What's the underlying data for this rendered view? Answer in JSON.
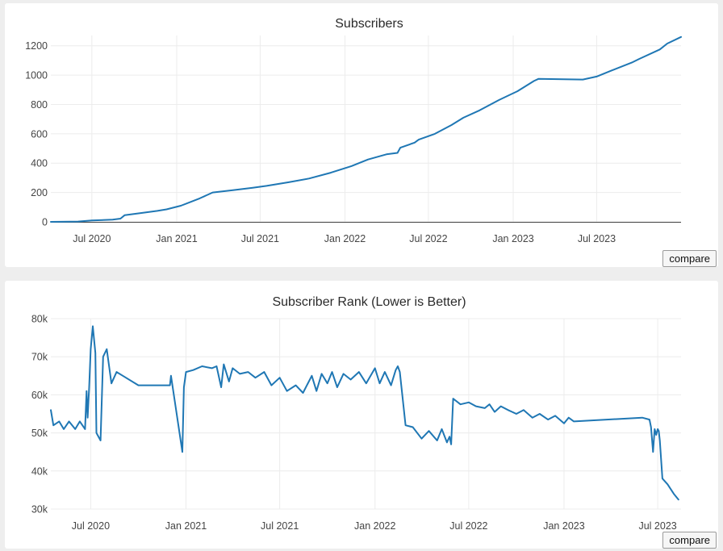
{
  "colors": {
    "line": "#1f77b4",
    "grid": "#ececec",
    "axis": "#444444"
  },
  "buttons": {
    "compare_label": "compare"
  },
  "chart_data": [
    {
      "type": "line",
      "title": "Subscribers",
      "xlabel": "",
      "ylabel": "",
      "x_ticks": [
        "Jul 2020",
        "Jan 2021",
        "Jul 2021",
        "Jan 2022",
        "Jul 2022",
        "Jan 2023",
        "Jul 2023"
      ],
      "y_ticks": [
        0,
        200,
        400,
        600,
        800,
        1000,
        1200
      ],
      "xlim": [
        "2020-04-03",
        "2023-12-31"
      ],
      "ylim": [
        0,
        1270
      ],
      "grid": true,
      "series": [
        {
          "x": [
            "2020-04-03",
            "2020-06-01",
            "2020-07-01",
            "2020-08-15",
            "2020-09-01",
            "2020-09-10",
            "2020-10-15",
            "2020-11-20",
            "2020-12-10",
            "2021-01-10",
            "2021-02-20",
            "2021-03-20",
            "2021-05-01",
            "2021-06-15",
            "2021-07-15",
            "2021-09-01",
            "2021-10-15",
            "2021-12-01",
            "2022-01-15",
            "2022-02-20",
            "2022-04-01",
            "2022-04-25",
            "2022-05-01",
            "2022-06-01",
            "2022-06-10",
            "2022-07-15",
            "2022-08-20",
            "2022-09-15",
            "2022-10-20",
            "2022-12-01",
            "2023-01-10",
            "2023-02-15",
            "2023-02-25",
            "2023-06-01",
            "2023-07-01",
            "2023-08-01",
            "2023-09-15",
            "2023-10-01",
            "2023-11-15",
            "2023-12-01",
            "2023-12-31"
          ],
          "y": [
            0,
            2,
            10,
            15,
            22,
            45,
            60,
            75,
            85,
            110,
            160,
            200,
            215,
            232,
            245,
            270,
            295,
            335,
            380,
            425,
            460,
            470,
            505,
            540,
            560,
            600,
            660,
            710,
            760,
            830,
            890,
            960,
            975,
            970,
            990,
            1030,
            1085,
            1110,
            1175,
            1215,
            1260
          ]
        }
      ]
    },
    {
      "type": "line",
      "title": "Subscriber Rank (Lower is Better)",
      "xlabel": "",
      "ylabel": "",
      "x_ticks": [
        "Jul 2020",
        "Jan 2021",
        "Jul 2021",
        "Jan 2022",
        "Jul 2022",
        "Jan 2023",
        "Jul 2023"
      ],
      "y_ticks": [
        "30k",
        "40k",
        "50k",
        "60k",
        "70k",
        "80k"
      ],
      "xlim": [
        "2020-04-15",
        "2023-08-15"
      ],
      "ylim": [
        30000,
        80000
      ],
      "grid": true,
      "series": [
        {
          "x": [
            "2020-04-15",
            "2020-04-20",
            "2020-05-01",
            "2020-05-10",
            "2020-05-20",
            "2020-06-01",
            "2020-06-10",
            "2020-06-20",
            "2020-06-23",
            "2020-06-25",
            "2020-06-28",
            "2020-07-01",
            "2020-07-05",
            "2020-07-10",
            "2020-07-12",
            "2020-07-20",
            "2020-07-25",
            "2020-08-01",
            "2020-08-10",
            "2020-08-20",
            "2020-09-01",
            "2020-10-01",
            "2020-11-01",
            "2020-12-01",
            "2020-12-03",
            "2020-12-25",
            "2020-12-28",
            "2021-01-01",
            "2021-01-15",
            "2021-02-01",
            "2021-02-20",
            "2021-03-01",
            "2021-03-10",
            "2021-03-15",
            "2021-03-25",
            "2021-04-01",
            "2021-04-15",
            "2021-05-01",
            "2021-05-15",
            "2021-06-01",
            "2021-06-15",
            "2021-07-01",
            "2021-07-15",
            "2021-08-01",
            "2021-08-15",
            "2021-09-01",
            "2021-09-10",
            "2021-09-20",
            "2021-10-01",
            "2021-10-10",
            "2021-10-20",
            "2021-11-01",
            "2021-11-15",
            "2021-12-01",
            "2021-12-15",
            "2022-01-01",
            "2022-01-10",
            "2022-01-20",
            "2022-02-01",
            "2022-02-10",
            "2022-02-14",
            "2022-02-18",
            "2022-03-01",
            "2022-03-15",
            "2022-04-01",
            "2022-04-15",
            "2022-05-01",
            "2022-05-10",
            "2022-05-20",
            "2022-05-25",
            "2022-05-28",
            "2022-06-01",
            "2022-06-15",
            "2022-07-01",
            "2022-07-15",
            "2022-08-01",
            "2022-08-10",
            "2022-08-20",
            "2022-09-01",
            "2022-09-15",
            "2022-10-01",
            "2022-10-15",
            "2022-11-01",
            "2022-11-15",
            "2022-12-01",
            "2022-12-15",
            "2023-01-01",
            "2023-01-10",
            "2023-01-20",
            "2023-06-01",
            "2023-06-15",
            "2023-06-18",
            "2023-06-22",
            "2023-06-25",
            "2023-06-28",
            "2023-07-01",
            "2023-07-03",
            "2023-07-05",
            "2023-07-10",
            "2023-07-20",
            "2023-08-01",
            "2023-08-10"
          ],
          "y": [
            56000,
            52000,
            53000,
            51000,
            53000,
            51000,
            53000,
            51000,
            61000,
            54000,
            62000,
            72000,
            78000,
            71000,
            50000,
            48000,
            70000,
            72000,
            63000,
            66000,
            65000,
            62500,
            62500,
            62500,
            65000,
            45000,
            62000,
            66000,
            66500,
            67500,
            67000,
            67500,
            62000,
            68000,
            63500,
            67000,
            65500,
            66000,
            64500,
            66000,
            62500,
            64500,
            61000,
            62500,
            60500,
            65000,
            61000,
            65500,
            63000,
            66000,
            62000,
            65500,
            64000,
            66000,
            63000,
            67000,
            63000,
            66000,
            62500,
            66500,
            67500,
            66000,
            52000,
            51500,
            48500,
            50500,
            48000,
            51000,
            47500,
            49000,
            47000,
            59000,
            57500,
            58000,
            57000,
            56500,
            57500,
            55500,
            57000,
            56000,
            55000,
            56000,
            54000,
            55000,
            53500,
            54500,
            52500,
            54000,
            53000,
            54000,
            53500,
            51500,
            45000,
            51000,
            49500,
            51000,
            50500,
            48000,
            38000,
            36500,
            34000,
            32500
          ]
        }
      ]
    }
  ]
}
